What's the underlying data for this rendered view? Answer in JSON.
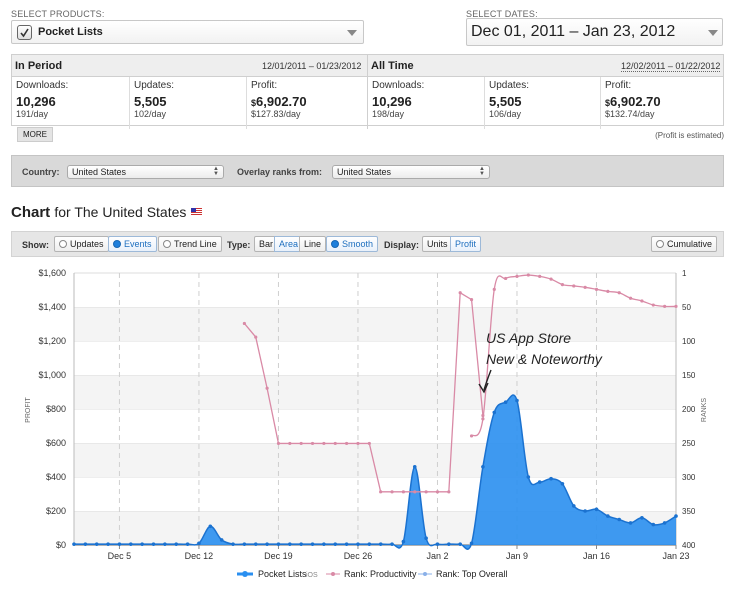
{
  "products": {
    "label": "SELECT PRODUCTS:",
    "selected": "Pocket Lists"
  },
  "dates": {
    "label": "SELECT DATES:",
    "value": "Dec 01, 2011 – Jan 23, 2012"
  },
  "in_period": {
    "title": "In Period",
    "range": "12/01/2011 – 01/23/2012",
    "downloads": {
      "label": "Downloads:",
      "value": "10,296",
      "sub": "191/day"
    },
    "updates": {
      "label": "Updates:",
      "value": "5,505",
      "sub": "102/day"
    },
    "profit": {
      "label": "Profit:",
      "currency": "$",
      "value": "6,902.70",
      "sub": "$127.83/day"
    }
  },
  "all_time": {
    "title": "All Time",
    "range": "12/02/2011 – 01/22/2012",
    "downloads": {
      "label": "Downloads:",
      "value": "10,296",
      "sub": "198/day"
    },
    "updates": {
      "label": "Updates:",
      "value": "5,505",
      "sub": "106/day"
    },
    "profit": {
      "label": "Profit:",
      "currency": "$",
      "value": "6,902.70",
      "sub": "$132.74/day"
    }
  },
  "more_label": "MORE",
  "profit_note": "(Profit is estimated)",
  "filters": {
    "country_label": "Country:",
    "country_value": "United States",
    "overlay_label": "Overlay ranks from:",
    "overlay_value": "United States"
  },
  "chart_heading": {
    "title": "Chart",
    "subtitle": "for The United States"
  },
  "controls": {
    "show_label": "Show:",
    "show": [
      "Updates",
      "Events",
      "Trend Line"
    ],
    "show_active": "Events",
    "type_label": "Type:",
    "type": [
      "Bar",
      "Area",
      "Line"
    ],
    "type_active": "Area",
    "smooth": "Smooth",
    "display_label": "Display:",
    "display": [
      "Units",
      "Profit"
    ],
    "display_active": "Profit",
    "cumulative": "Cumulative"
  },
  "legend": {
    "series1": "Pocket Lists",
    "series1_tag": "iOS",
    "series2": "Rank: Productivity",
    "series3": "Rank: Top Overall"
  },
  "annotation": {
    "line1": "US App Store",
    "line2": "New & Noteworthy"
  },
  "colors": {
    "profit": "#2a8ff0",
    "rank_productivity": "#d98aa6",
    "rank_overall": "#8ab0e8",
    "accent": "#1e6fbf"
  },
  "chart_data": {
    "type": "area",
    "title": "",
    "xlabel": "",
    "ylabel": "PROFIT",
    "y2label": "RANKS",
    "x_ticks": [
      "Dec 5",
      "Dec 12",
      "Dec 19",
      "Dec 26",
      "Jan 2",
      "Jan 9",
      "Jan 16",
      "Jan 23"
    ],
    "x_tick_days": [
      4,
      11,
      18,
      25,
      32,
      39,
      46,
      53
    ],
    "y_ticks": [
      "$0",
      "$200",
      "$400",
      "$600",
      "$800",
      "$1,000",
      "$1,200",
      "$1,400",
      "$1,600"
    ],
    "y2_ticks": [
      "1",
      "50",
      "100",
      "150",
      "200",
      "250",
      "300",
      "350",
      "400"
    ],
    "ylim": [
      0,
      1600
    ],
    "y2lim": [
      1,
      400
    ],
    "x_start": "2011-12-01",
    "x_end": "2012-01-23",
    "series": [
      {
        "name": "Pocket Lists",
        "axis": "left",
        "x": [
          "2011-12-01",
          "2011-12-02",
          "2011-12-03",
          "2011-12-04",
          "2011-12-05",
          "2011-12-06",
          "2011-12-07",
          "2011-12-08",
          "2011-12-09",
          "2011-12-10",
          "2011-12-11",
          "2011-12-12",
          "2011-12-13",
          "2011-12-14",
          "2011-12-15",
          "2011-12-16",
          "2011-12-17",
          "2011-12-18",
          "2011-12-19",
          "2011-12-20",
          "2011-12-21",
          "2011-12-22",
          "2011-12-23",
          "2011-12-24",
          "2011-12-25",
          "2011-12-26",
          "2011-12-27",
          "2011-12-28",
          "2011-12-29",
          "2011-12-30",
          "2011-12-31",
          "2012-01-01",
          "2012-01-02",
          "2012-01-03",
          "2012-01-04",
          "2012-01-05",
          "2012-01-06",
          "2012-01-07",
          "2012-01-08",
          "2012-01-09",
          "2012-01-10",
          "2012-01-11",
          "2012-01-12",
          "2012-01-13",
          "2012-01-14",
          "2012-01-15",
          "2012-01-16",
          "2012-01-17",
          "2012-01-18",
          "2012-01-19",
          "2012-01-20",
          "2012-01-21",
          "2012-01-22",
          "2012-01-23"
        ],
        "values": [
          5,
          5,
          5,
          5,
          5,
          5,
          5,
          5,
          5,
          5,
          5,
          10,
          110,
          30,
          5,
          5,
          5,
          5,
          5,
          5,
          5,
          5,
          5,
          5,
          5,
          5,
          5,
          5,
          5,
          20,
          460,
          40,
          5,
          5,
          5,
          10,
          460,
          780,
          840,
          850,
          400,
          370,
          390,
          360,
          230,
          200,
          210,
          170,
          150,
          130,
          160,
          120,
          130,
          170
        ]
      },
      {
        "name": "Rank: Productivity",
        "axis": "right",
        "x": [
          "2011-12-16",
          "2011-12-17",
          "2011-12-18",
          "2011-12-19",
          "2011-12-20",
          "2011-12-21",
          "2011-12-22",
          "2011-12-23",
          "2011-12-24",
          "2011-12-25",
          "2011-12-26",
          "2011-12-27",
          "2011-12-28",
          "2011-12-29",
          "2011-12-30",
          "2011-12-31",
          "2012-01-01",
          "2012-01-02",
          "2012-01-03",
          "2012-01-04",
          "2012-01-05",
          "2012-01-06"
        ],
        "values": [
          75,
          95,
          170,
          251,
          251,
          251,
          251,
          251,
          251,
          251,
          251,
          251,
          322,
          322,
          322,
          322,
          322,
          322,
          322,
          30,
          40,
          210
        ]
      },
      {
        "name": "Rank: Top Overall",
        "axis": "right",
        "x": [
          "2012-01-05",
          "2012-01-06",
          "2012-01-07",
          "2012-01-08",
          "2012-01-09",
          "2012-01-10",
          "2012-01-11",
          "2012-01-12",
          "2012-01-13",
          "2012-01-14",
          "2012-01-15",
          "2012-01-16",
          "2012-01-17",
          "2012-01-18",
          "2012-01-19",
          "2012-01-20",
          "2012-01-21",
          "2012-01-22",
          "2012-01-23"
        ],
        "values": [
          240,
          215,
          25,
          9,
          6,
          4,
          6,
          10,
          18,
          20,
          22,
          25,
          28,
          30,
          38,
          42,
          48,
          50,
          50
        ]
      }
    ],
    "grid": true,
    "legend_position": "bottom"
  }
}
